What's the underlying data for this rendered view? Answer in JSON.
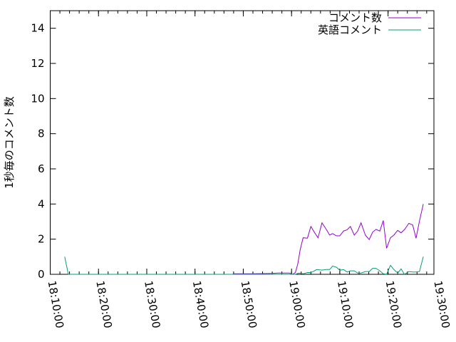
{
  "chart_data": {
    "type": "line",
    "title": "",
    "xlabel": "",
    "ylabel": "1秒毎のコメント数",
    "xlim": [
      "18:10:00",
      "19:29:30"
    ],
    "ylim": [
      0,
      15
    ],
    "x_ticks": [
      "18:10:00",
      "18:20:00",
      "18:30:00",
      "18:40:00",
      "18:50:00",
      "19:00:00",
      "19:10:00",
      "19:20:00",
      "19:30:00"
    ],
    "y_ticks": [
      0,
      2,
      4,
      6,
      8,
      10,
      12,
      14
    ],
    "grid": false,
    "legend": "top-right",
    "series": [
      {
        "name": "コメント数",
        "color": "#9400d3",
        "x": [
          "18:47:50",
          "18:50:00",
          "18:52:00",
          "18:54:00",
          "18:56:00",
          "18:57:06",
          "18:58:24",
          "18:59:36",
          "19:00:12",
          "19:00:48",
          "19:01:18",
          "19:01:48",
          "19:02:24",
          "19:03:18",
          "19:04:00",
          "19:04:48",
          "19:05:30",
          "19:06:18",
          "19:07:12",
          "19:07:54",
          "19:08:30",
          "19:09:18",
          "19:10:00",
          "19:10:48",
          "19:11:30",
          "19:12:12",
          "19:13:00",
          "19:13:42",
          "19:14:24",
          "19:15:18",
          "19:16:06",
          "19:16:48",
          "19:17:30",
          "19:18:18",
          "19:19:00",
          "19:19:42",
          "19:20:30",
          "19:21:12",
          "19:22:00",
          "19:22:42",
          "19:23:24",
          "19:24:18",
          "19:25:06",
          "19:25:48",
          "19:26:30",
          "19:27:18"
        ],
        "y": [
          0.03,
          0.03,
          0.03,
          0.04,
          0.05,
          0.07,
          0.07,
          0.07,
          0.0,
          0.1,
          0.6,
          1.42,
          2.08,
          2.06,
          2.72,
          2.36,
          2.08,
          2.93,
          2.56,
          2.23,
          2.32,
          2.19,
          2.19,
          2.47,
          2.53,
          2.72,
          2.23,
          2.46,
          2.93,
          2.23,
          1.98,
          2.4,
          2.56,
          2.46,
          3.06,
          1.48,
          2.08,
          2.23,
          2.5,
          2.36,
          2.54,
          2.9,
          2.81,
          2.05,
          3.03,
          4.0
        ]
      },
      {
        "name": "英語コメント",
        "color": "#009e73",
        "x": [
          "18:13:00",
          "18:13:45",
          "18:57:06",
          "19:00:48",
          "19:01:30",
          "19:02:24",
          "19:03:18",
          "19:04:00",
          "19:04:30",
          "19:05:12",
          "19:06:18",
          "19:07:12",
          "19:07:54",
          "19:08:30",
          "19:09:18",
          "19:10:00",
          "19:10:48",
          "19:11:30",
          "19:12:12",
          "19:13:00",
          "19:13:42",
          "19:14:24",
          "19:15:18",
          "19:16:06",
          "19:16:48",
          "19:17:30",
          "19:18:18",
          "19:19:00",
          "19:19:42",
          "19:20:30",
          "19:21:12",
          "19:22:00",
          "19:22:42",
          "19:23:24",
          "19:24:18",
          "19:25:06",
          "19:25:48",
          "19:26:30",
          "19:27:18"
        ],
        "y": [
          1.0,
          0.0,
          0.0,
          0.0,
          0.07,
          0.03,
          0.1,
          0.1,
          0.16,
          0.27,
          0.24,
          0.27,
          0.27,
          0.47,
          0.4,
          0.23,
          0.27,
          0.13,
          0.2,
          0.2,
          0.07,
          0.07,
          0.16,
          0.16,
          0.34,
          0.34,
          0.2,
          0.03,
          0.0,
          0.51,
          0.27,
          0.07,
          0.31,
          0.0,
          0.16,
          0.13,
          0.13,
          0.16,
          1.0
        ]
      }
    ]
  }
}
